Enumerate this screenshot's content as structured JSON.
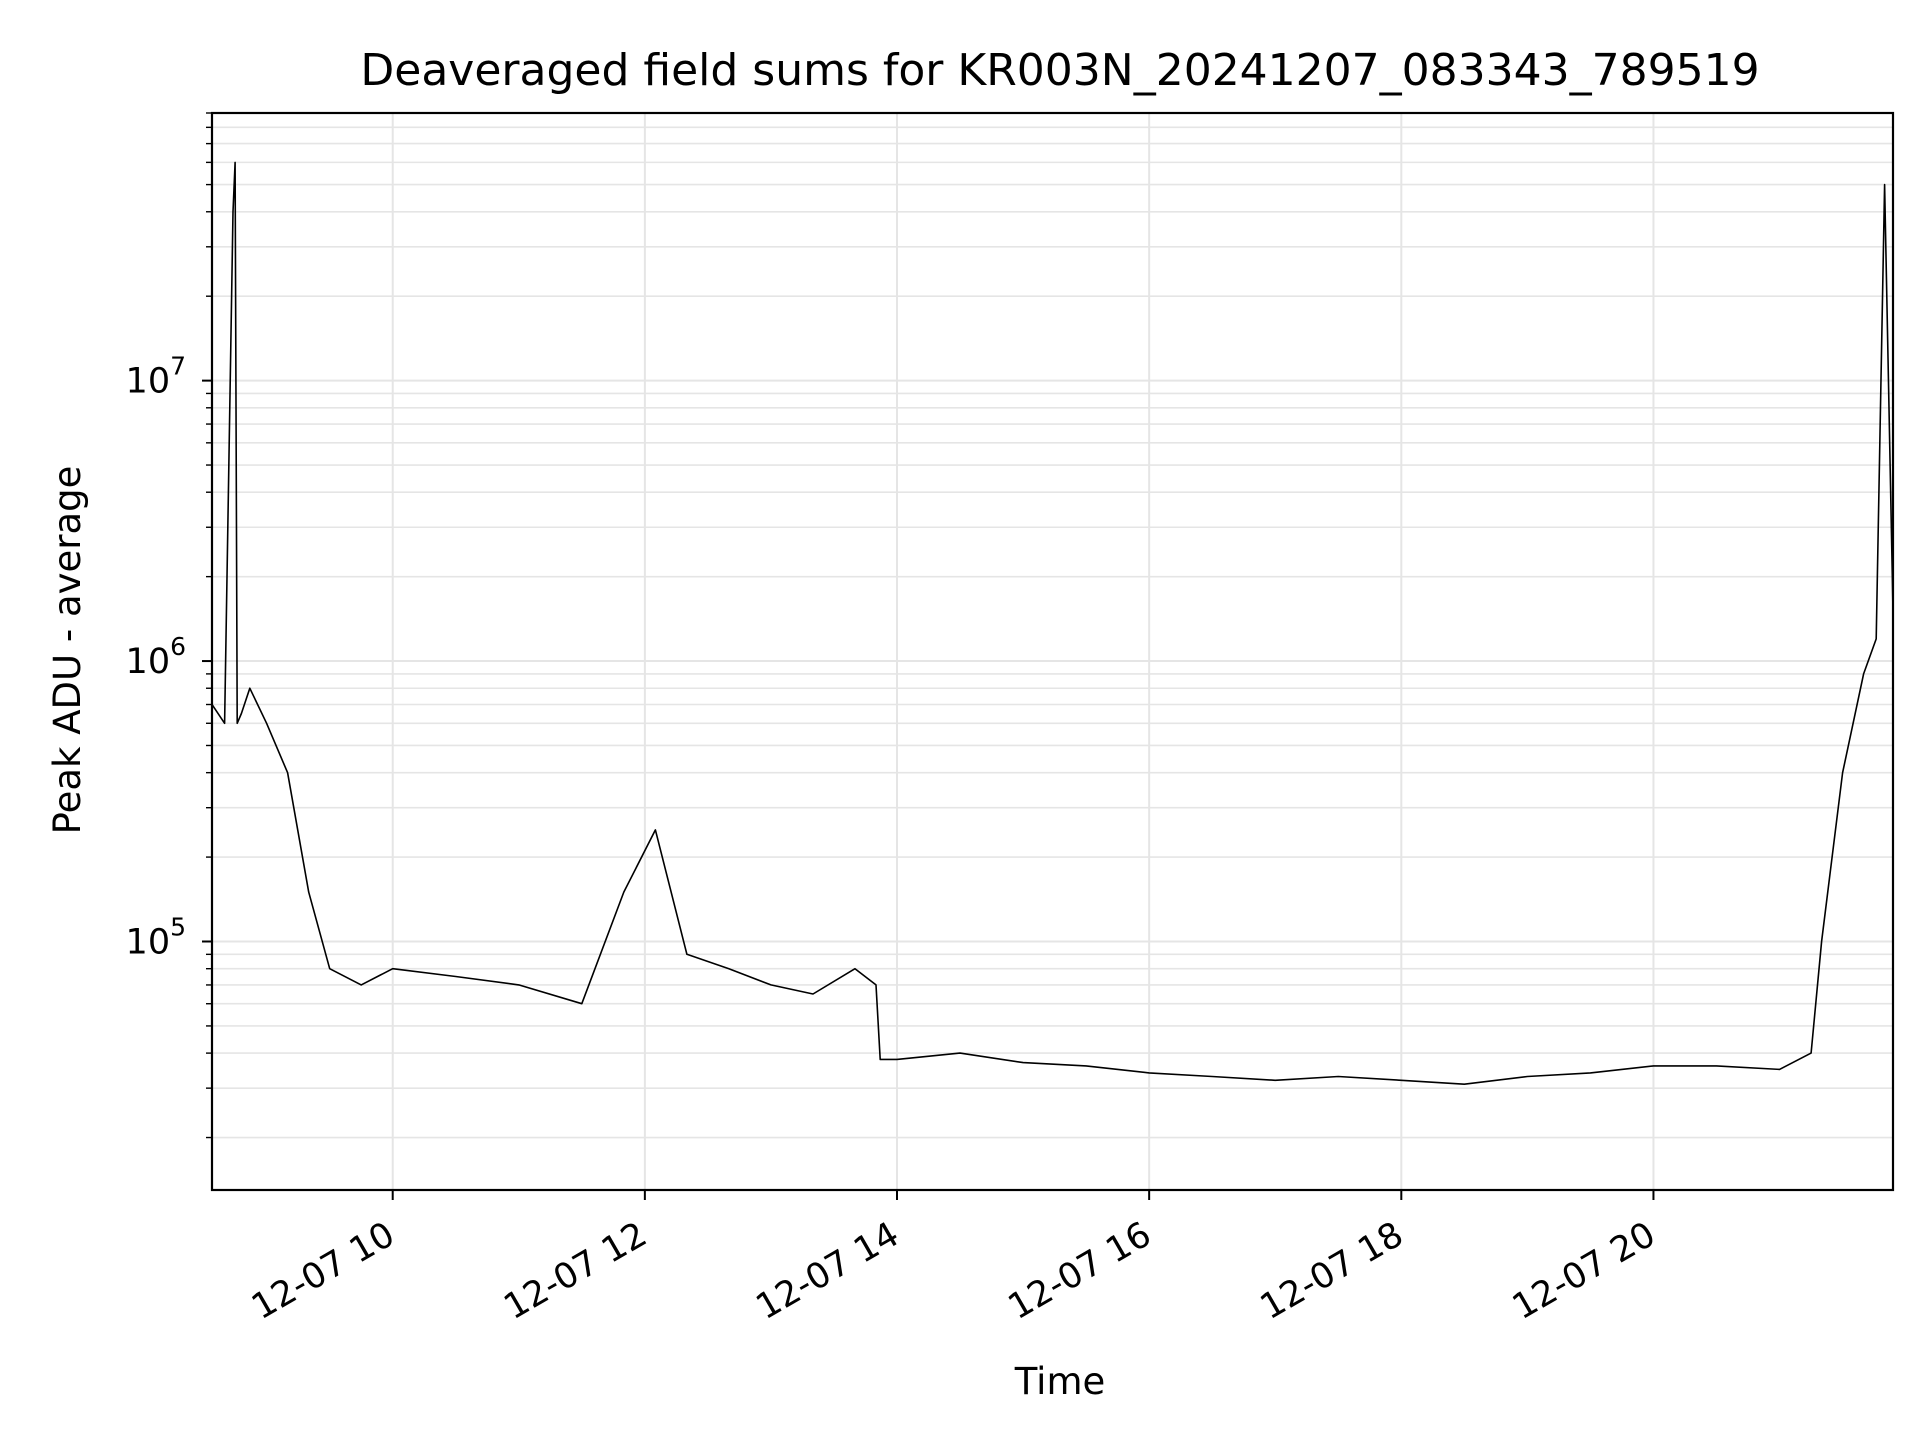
{
  "chart_data": {
    "type": "line",
    "title": "Deaveraged field sums for KR003N_20241207_083343_789519",
    "xlabel": "Time",
    "ylabel": "Peak ADU - average",
    "y_scale": "log",
    "ylim": [
      13000,
      90000000
    ],
    "xlim": [
      "2024-12-07 08:34",
      "2024-12-07 21:54"
    ],
    "x_ticks": [
      {
        "time": "2024-12-07 10:00",
        "label": "12-07 10"
      },
      {
        "time": "2024-12-07 12:00",
        "label": "12-07 12"
      },
      {
        "time": "2024-12-07 14:00",
        "label": "12-07 14"
      },
      {
        "time": "2024-12-07 16:00",
        "label": "12-07 16"
      },
      {
        "time": "2024-12-07 18:00",
        "label": "12-07 18"
      },
      {
        "time": "2024-12-07 20:00",
        "label": "12-07 20"
      }
    ],
    "y_ticks": [
      {
        "value": 100000,
        "base": "10",
        "exp": "5"
      },
      {
        "value": 1000000,
        "base": "10",
        "exp": "6"
      },
      {
        "value": 10000000,
        "base": "10",
        "exp": "7"
      }
    ],
    "grid": true,
    "line_color": "#000000",
    "grid_color": "#e5e5e5",
    "series": [
      {
        "x": [
          "2024-12-07 08:34",
          "2024-12-07 08:40",
          "2024-12-07 08:44",
          "2024-12-07 08:45",
          "2024-12-07 08:46",
          "2024-12-07 08:48",
          "2024-12-07 08:52",
          "2024-12-07 09:00",
          "2024-12-07 09:10",
          "2024-12-07 09:20",
          "2024-12-07 09:30",
          "2024-12-07 09:45",
          "2024-12-07 10:00",
          "2024-12-07 10:30",
          "2024-12-07 11:00",
          "2024-12-07 11:30",
          "2024-12-07 11:50",
          "2024-12-07 12:05",
          "2024-12-07 12:20",
          "2024-12-07 12:40",
          "2024-12-07 13:00",
          "2024-12-07 13:20",
          "2024-12-07 13:40",
          "2024-12-07 13:50",
          "2024-12-07 13:52",
          "2024-12-07 14:00",
          "2024-12-07 14:30",
          "2024-12-07 15:00",
          "2024-12-07 15:30",
          "2024-12-07 16:00",
          "2024-12-07 16:30",
          "2024-12-07 17:00",
          "2024-12-07 17:30",
          "2024-12-07 18:00",
          "2024-12-07 18:30",
          "2024-12-07 19:00",
          "2024-12-07 19:30",
          "2024-12-07 20:00",
          "2024-12-07 20:30",
          "2024-12-07 21:00",
          "2024-12-07 21:15",
          "2024-12-07 21:20",
          "2024-12-07 21:30",
          "2024-12-07 21:40",
          "2024-12-07 21:46",
          "2024-12-07 21:50",
          "2024-12-07 21:54"
        ],
        "y": [
          700000,
          600000,
          40000000,
          60000000,
          600000,
          650000,
          800000,
          600000,
          400000,
          150000,
          80000,
          70000,
          80000,
          75000,
          70000,
          60000,
          150000,
          250000,
          90000,
          80000,
          70000,
          65000,
          80000,
          70000,
          38000,
          38000,
          40000,
          37000,
          36000,
          34000,
          33000,
          32000,
          33000,
          32000,
          31000,
          33000,
          34000,
          36000,
          36000,
          35000,
          40000,
          100000,
          400000,
          900000,
          1200000,
          50000000,
          1500000
        ]
      }
    ]
  }
}
